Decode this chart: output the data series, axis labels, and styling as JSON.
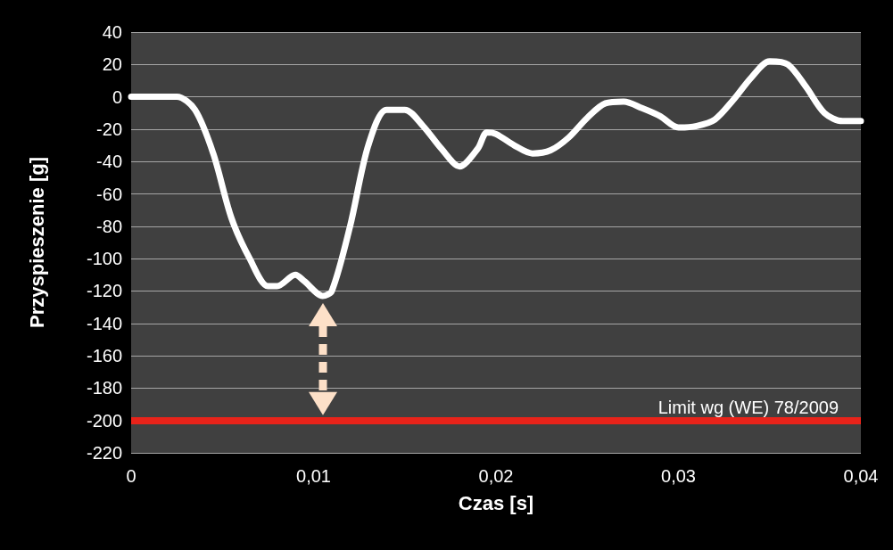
{
  "chart_data": {
    "type": "line",
    "xlabel": "Czas [s]",
    "ylabel": "Przyspieszenie [g]",
    "x": [
      0,
      0.0025,
      0.0035,
      0.0045,
      0.0055,
      0.0065,
      0.0075,
      0.008,
      0.009,
      0.0095,
      0.0105,
      0.011,
      0.012,
      0.013,
      0.014,
      0.015,
      0.016,
      0.017,
      0.018,
      0.019,
      0.0195,
      0.02,
      0.021,
      0.022,
      0.023,
      0.024,
      0.025,
      0.026,
      0.027,
      0.028,
      0.029,
      0.03,
      0.031,
      0.032,
      0.033,
      0.034,
      0.035,
      0.036,
      0.037,
      0.038,
      0.039,
      0.04
    ],
    "series": [
      {
        "color": "#ffffff",
        "values": [
          0,
          0,
          -8,
          -35,
          -75,
          -100,
          -117,
          -117,
          -110,
          -114,
          -123,
          -120,
          -80,
          -30,
          -8,
          -8,
          -18,
          -32,
          -43,
          -32,
          -22,
          -23,
          -30,
          -35,
          -33,
          -25,
          -13,
          -4,
          -3,
          -7,
          -12,
          -19,
          -18,
          -14,
          -2,
          12,
          22,
          20,
          6,
          -10,
          -15,
          -15
        ]
      }
    ],
    "xlim": [
      0,
      0.04
    ],
    "xticks": [
      0,
      {
        "value": 0.01,
        "label": "0,01"
      },
      {
        "value": 0.02,
        "label": "0,02"
      },
      {
        "value": 0.03,
        "label": "0,03"
      },
      {
        "value": 0.04,
        "label": "0,04"
      }
    ],
    "ylim": [
      -220,
      40
    ],
    "yticks": [
      -220,
      -200,
      -180,
      -160,
      -140,
      -120,
      -100,
      -80,
      -60,
      -40,
      -20,
      0,
      20,
      40
    ],
    "grid": "y",
    "marker": "none",
    "line_style": "solid",
    "ref_lines": [
      {
        "axis": "y",
        "value": -200,
        "label": "Limit wg (WE) 78/2009",
        "color": "#e8231a"
      }
    ]
  }
}
